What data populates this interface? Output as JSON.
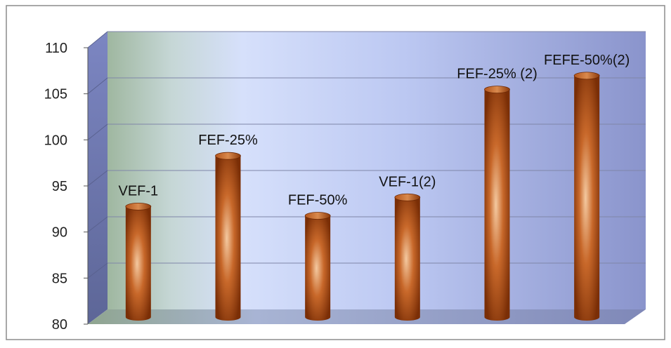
{
  "chart_data": {
    "type": "bar",
    "categories": [
      "VEF-1",
      "FEF-25%",
      "FEF-50%",
      "VEF-1(2)",
      "FEF-25%(2)",
      "FEFE-50%(2)"
    ],
    "values": [
      92,
      97.5,
      91,
      93,
      104.7,
      106.2
    ],
    "data_labels": [
      "VEF-1",
      "FEF-25%",
      "FEF-50%",
      "VEF-1(2)",
      "FEF-25% (2)",
      "FEFE-50%(2)"
    ],
    "y_ticks": [
      "80",
      "85",
      "90",
      "95",
      "100",
      "105",
      "110"
    ],
    "ylim": [
      80,
      110
    ],
    "grid": true,
    "legend": "none",
    "colors": {
      "bar_dark": "#7a2e06",
      "bar_mid": "#c8682a",
      "bar_light": "#f4c9a0",
      "wall_left": "#9fb7a0",
      "wall_mid": "#d6e0fb",
      "wall_right": "#8a94cc",
      "side_wall": "#6e78b4",
      "floor": "#8a96b8"
    }
  }
}
